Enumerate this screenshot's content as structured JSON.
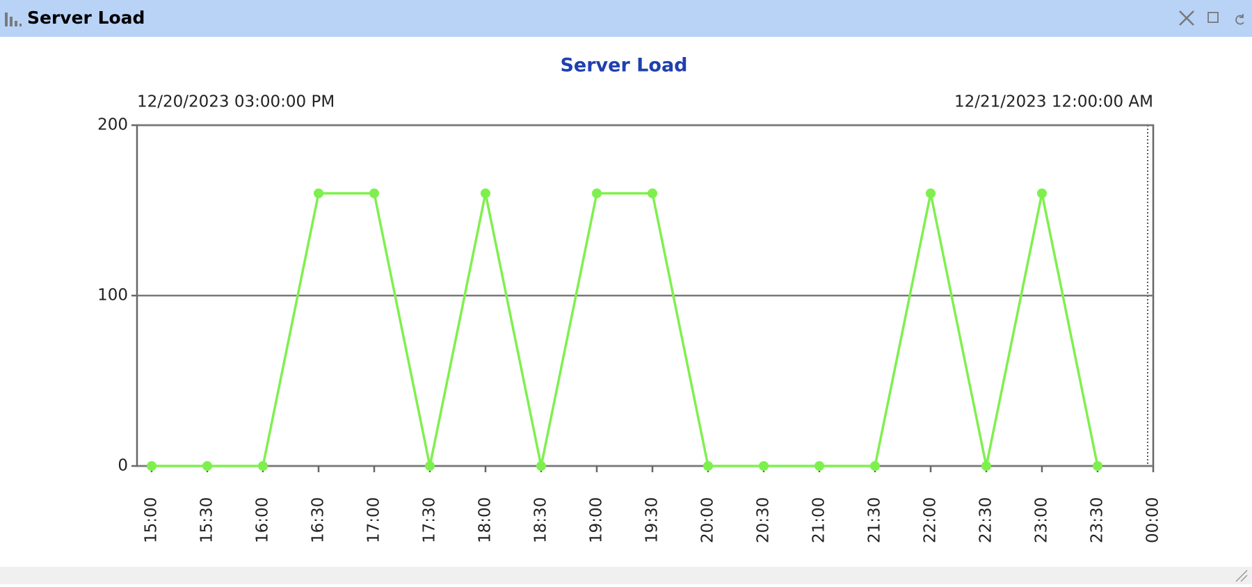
{
  "window": {
    "title": "Server Load"
  },
  "chart_data": {
    "type": "line",
    "title": "Server Load",
    "range_start": "12/20/2023 03:00:00 PM",
    "range_end": "12/21/2023 12:00:00 AM",
    "categories": [
      "15:00",
      "15:30",
      "16:00",
      "16:30",
      "17:00",
      "17:30",
      "18:00",
      "18:30",
      "19:00",
      "19:30",
      "20:00",
      "20:30",
      "21:00",
      "21:30",
      "22:00",
      "22:30",
      "23:00",
      "23:30",
      "00:00"
    ],
    "series": [
      {
        "name": "Server Load",
        "color": "#7ef04e",
        "values": [
          0,
          0,
          0,
          160,
          160,
          0,
          160,
          0,
          160,
          160,
          0,
          0,
          0,
          0,
          160,
          0,
          160,
          0,
          null
        ]
      }
    ],
    "ylim": [
      0,
      200
    ],
    "yticks": [
      0,
      100,
      200
    ],
    "grid": true
  }
}
